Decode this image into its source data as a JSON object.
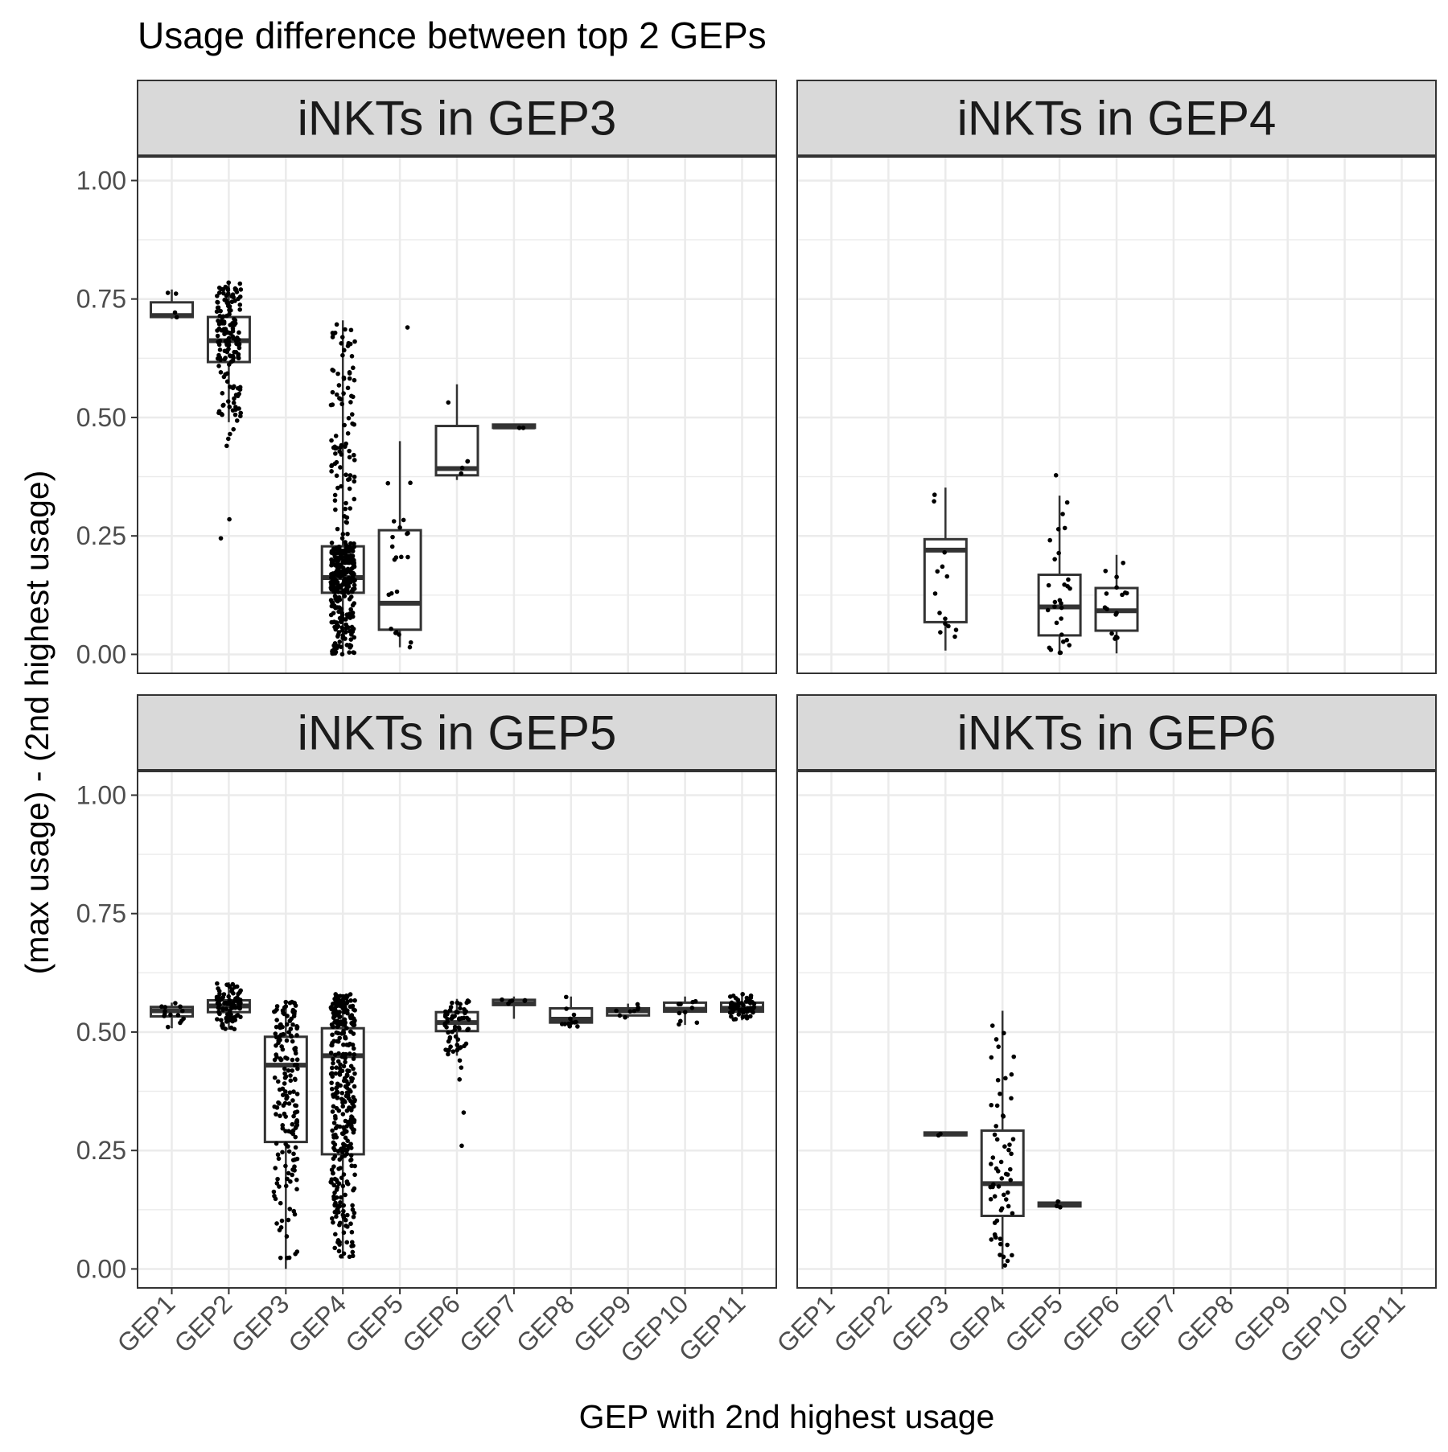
{
  "chart_data": {
    "type": "box",
    "title": "Usage difference between top 2 GEPs",
    "xlabel": "GEP with 2nd highest usage",
    "ylabel": "(max usage) - (2nd highest usage)",
    "ylim": [
      -0.04,
      1.05
    ],
    "y_ticks": [
      "0.00",
      "0.25",
      "0.50",
      "0.75",
      "1.00"
    ],
    "categories": [
      "GEP1",
      "GEP2",
      "GEP3",
      "GEP4",
      "GEP5",
      "GEP6",
      "GEP7",
      "GEP8",
      "GEP9",
      "GEP10",
      "GEP11"
    ],
    "grid": true,
    "panels": [
      {
        "label": "iNKTs in GEP3",
        "boxes": [
          {
            "category": "GEP1",
            "q1": 0.712,
            "median": 0.715,
            "q3": 0.743,
            "lower": 0.708,
            "upper": 0.77,
            "n": 4
          },
          {
            "category": "GEP2",
            "q1": 0.617,
            "median": 0.662,
            "q3": 0.712,
            "lower": 0.49,
            "upper": 0.785,
            "n": 160,
            "outliers": [
              0.44,
              0.455,
              0.465,
              0.475,
              0.285,
              0.245
            ]
          },
          {
            "category": "GEP4",
            "q1": 0.13,
            "median": 0.162,
            "q3": 0.228,
            "lower": 0.0,
            "upper": 0.705,
            "n": 380
          },
          {
            "category": "GEP5",
            "q1": 0.052,
            "median": 0.108,
            "q3": 0.262,
            "lower": 0.015,
            "upper": 0.45,
            "n": 22,
            "outliers": [
              0.69
            ]
          },
          {
            "category": "GEP6",
            "q1": 0.378,
            "median": 0.392,
            "q3": 0.482,
            "lower": 0.368,
            "upper": 0.57,
            "n": 5
          },
          {
            "category": "GEP7",
            "q1": 0.478,
            "median": 0.48,
            "q3": 0.485,
            "lower": 0.478,
            "upper": 0.485,
            "n": 2
          }
        ]
      },
      {
        "label": "iNKTs in GEP4",
        "boxes": [
          {
            "category": "GEP3",
            "q1": 0.068,
            "median": 0.22,
            "q3": 0.243,
            "lower": 0.008,
            "upper": 0.352,
            "n": 14
          },
          {
            "category": "GEP5",
            "q1": 0.04,
            "median": 0.1,
            "q3": 0.168,
            "lower": 0.0,
            "upper": 0.335,
            "n": 28,
            "outliers": [
              0.378
            ]
          },
          {
            "category": "GEP6",
            "q1": 0.05,
            "median": 0.092,
            "q3": 0.14,
            "lower": 0.002,
            "upper": 0.21,
            "n": 16
          }
        ]
      },
      {
        "label": "iNKTs in GEP5",
        "boxes": [
          {
            "category": "GEP1",
            "q1": 0.533,
            "median": 0.545,
            "q3": 0.553,
            "lower": 0.508,
            "upper": 0.562,
            "n": 14
          },
          {
            "category": "GEP2",
            "q1": 0.542,
            "median": 0.555,
            "q3": 0.567,
            "lower": 0.505,
            "upper": 0.605,
            "n": 90
          },
          {
            "category": "GEP3",
            "q1": 0.268,
            "median": 0.43,
            "q3": 0.49,
            "lower": 0.0,
            "upper": 0.565,
            "n": 170
          },
          {
            "category": "GEP4",
            "q1": 0.242,
            "median": 0.45,
            "q3": 0.508,
            "lower": 0.022,
            "upper": 0.58,
            "n": 360
          },
          {
            "category": "GEP6",
            "q1": 0.502,
            "median": 0.52,
            "q3": 0.542,
            "lower": 0.45,
            "upper": 0.57,
            "n": 60,
            "outliers": [
              0.44,
              0.425,
              0.4,
              0.33,
              0.26
            ]
          },
          {
            "category": "GEP7",
            "q1": 0.557,
            "median": 0.56,
            "q3": 0.568,
            "lower": 0.528,
            "upper": 0.575,
            "n": 6
          },
          {
            "category": "GEP8",
            "q1": 0.52,
            "median": 0.527,
            "q3": 0.55,
            "lower": 0.51,
            "upper": 0.575,
            "n": 12
          },
          {
            "category": "GEP9",
            "q1": 0.535,
            "median": 0.545,
            "q3": 0.55,
            "lower": 0.53,
            "upper": 0.56,
            "n": 8
          },
          {
            "category": "GEP10",
            "q1": 0.543,
            "median": 0.548,
            "q3": 0.562,
            "lower": 0.515,
            "upper": 0.575,
            "n": 10
          },
          {
            "category": "GEP11",
            "q1": 0.543,
            "median": 0.55,
            "q3": 0.562,
            "lower": 0.525,
            "upper": 0.58,
            "n": 60
          }
        ]
      },
      {
        "label": "iNKTs in GEP6",
        "boxes": [
          {
            "category": "GEP3",
            "q1": 0.282,
            "median": 0.285,
            "q3": 0.288,
            "lower": 0.282,
            "upper": 0.288,
            "n": 2
          },
          {
            "category": "GEP4",
            "q1": 0.112,
            "median": 0.18,
            "q3": 0.292,
            "lower": 0.0,
            "upper": 0.545,
            "n": 60
          },
          {
            "category": "GEP5",
            "q1": 0.132,
            "median": 0.135,
            "q3": 0.14,
            "lower": 0.13,
            "upper": 0.145,
            "n": 3
          }
        ]
      }
    ]
  }
}
